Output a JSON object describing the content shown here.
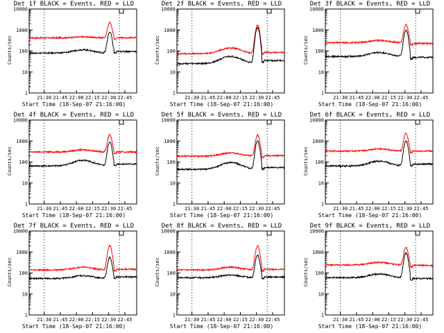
{
  "chart_data": [
    {
      "type": "line",
      "title": "Det 1f BLACK = Events, RED = LLD",
      "xlabel": "Start Time (18-Sep-07 21:16:00)",
      "ylabel": "Counts/sec",
      "x_ticks": [
        "21:30",
        "21:45",
        "22:00",
        "22:15",
        "22:30",
        "22:45"
      ],
      "y_ticks": [
        "1",
        "10",
        "100",
        "1000",
        "10000"
      ],
      "ylim": [
        1,
        10000
      ],
      "yscale": "log",
      "series": [
        {
          "color": "#ff0000",
          "baseline": 420,
          "bump": 470,
          "peak": 2300,
          "end": 430
        },
        {
          "color": "#000000",
          "baseline": 80,
          "bump": 115,
          "peak": 800,
          "end": 95
        }
      ]
    },
    {
      "type": "line",
      "title": "Det 2f BLACK = Events, RED = LLD",
      "xlabel": "Start Time (18-Sep-07 21:16:00)",
      "ylabel": "Counts/sec",
      "x_ticks": [
        "21:30",
        "21:45",
        "22:00",
        "22:15",
        "22:30",
        "22:45"
      ],
      "y_ticks": [
        "1",
        "10",
        "100",
        "1000",
        "10000"
      ],
      "ylim": [
        1,
        10000
      ],
      "yscale": "log",
      "series": [
        {
          "color": "#ff0000",
          "baseline": 75,
          "bump": 140,
          "peak": 1700,
          "end": 85
        },
        {
          "color": "#000000",
          "baseline": 25,
          "bump": 55,
          "peak": 1300,
          "end": 35
        }
      ]
    },
    {
      "type": "line",
      "title": "Det 3f BLACK = Events, RED = LLD",
      "xlabel": "Start Time (18-Sep-07 21:16:00)",
      "ylabel": "Counts/sec",
      "x_ticks": [
        "21:30",
        "21:45",
        "22:00",
        "22:15",
        "22:30",
        "22:45"
      ],
      "y_ticks": [
        "1",
        "10",
        "100",
        "1000",
        "10000"
      ],
      "ylim": [
        1,
        10000
      ],
      "yscale": "log",
      "series": [
        {
          "color": "#ff0000",
          "baseline": 250,
          "bump": 320,
          "peak": 1800,
          "end": 230
        },
        {
          "color": "#000000",
          "baseline": 55,
          "bump": 85,
          "peak": 1000,
          "end": 50
        }
      ]
    },
    {
      "type": "line",
      "title": "Det 4f BLACK = Events, RED = LLD",
      "xlabel": "Start Time (18-Sep-07 21:16:00)",
      "ylabel": "Counts/sec",
      "x_ticks": [
        "21:30",
        "21:45",
        "22:00",
        "22:15",
        "22:30",
        "22:45"
      ],
      "y_ticks": [
        "1",
        "10",
        "100",
        "1000",
        "10000"
      ],
      "ylim": [
        1,
        10000
      ],
      "yscale": "log",
      "series": [
        {
          "color": "#ff0000",
          "baseline": 300,
          "bump": 380,
          "peak": 2000,
          "end": 300
        },
        {
          "color": "#000000",
          "baseline": 65,
          "bump": 120,
          "peak": 900,
          "end": 80
        }
      ]
    },
    {
      "type": "line",
      "title": "Det 5f BLACK = Events, RED = LLD",
      "xlabel": "Start Time (18-Sep-07 21:16:00)",
      "ylabel": "Counts/sec",
      "x_ticks": [
        "21:30",
        "21:45",
        "22:00",
        "22:15",
        "22:30",
        "22:45"
      ],
      "y_ticks": [
        "1",
        "10",
        "100",
        "1000",
        "10000"
      ],
      "ylim": [
        1,
        10000
      ],
      "yscale": "log",
      "series": [
        {
          "color": "#ff0000",
          "baseline": 190,
          "bump": 270,
          "peak": 1900,
          "end": 200
        },
        {
          "color": "#000000",
          "baseline": 45,
          "bump": 95,
          "peak": 1000,
          "end": 55
        }
      ]
    },
    {
      "type": "line",
      "title": "Det 6f BLACK = Events, RED = LLD",
      "xlabel": "Start Time (18-Sep-07 21:16:00)",
      "ylabel": "Counts/sec",
      "x_ticks": [
        "21:30",
        "21:45",
        "22:00",
        "22:15",
        "22:30",
        "22:45"
      ],
      "y_ticks": [
        "1",
        "10",
        "100",
        "1000",
        "10000"
      ],
      "ylim": [
        1,
        10000
      ],
      "yscale": "log",
      "series": [
        {
          "color": "#ff0000",
          "baseline": 330,
          "bump": 420,
          "peak": 2300,
          "end": 330
        },
        {
          "color": "#000000",
          "baseline": 65,
          "bump": 110,
          "peak": 1000,
          "end": 80
        }
      ]
    },
    {
      "type": "line",
      "title": "Det 7f BLACK = Events, RED = LLD",
      "xlabel": "Start Time (18-Sep-07 21:16:00)",
      "ylabel": "Counts/sec",
      "x_ticks": [
        "21:30",
        "21:45",
        "22:00",
        "22:15",
        "22:30",
        "22:45"
      ],
      "y_ticks": [
        "1",
        "10",
        "100",
        "1000",
        "10000"
      ],
      "ylim": [
        1,
        10000
      ],
      "yscale": "log",
      "series": [
        {
          "color": "#ff0000",
          "baseline": 140,
          "bump": 190,
          "peak": 2000,
          "end": 150
        },
        {
          "color": "#000000",
          "baseline": 55,
          "bump": 75,
          "peak": 550,
          "end": 65
        }
      ]
    },
    {
      "type": "line",
      "title": "Det 8f BLACK = Events, RED = LLD",
      "xlabel": "Start Time (18-Sep-07 21:16:00)",
      "ylabel": "Counts/sec",
      "x_ticks": [
        "21:30",
        "21:45",
        "22:00",
        "22:15",
        "22:30",
        "22:45"
      ],
      "y_ticks": [
        "1",
        "10",
        "100",
        "1000",
        "10000"
      ],
      "ylim": [
        1,
        10000
      ],
      "yscale": "log",
      "series": [
        {
          "color": "#ff0000",
          "baseline": 140,
          "bump": 190,
          "peak": 2000,
          "end": 150
        },
        {
          "color": "#000000",
          "baseline": 60,
          "bump": 80,
          "peak": 700,
          "end": 65
        }
      ]
    },
    {
      "type": "line",
      "title": "Det 9f BLACK = Events, RED = LLD",
      "xlabel": "Start Time (18-Sep-07 21:16:00)",
      "ylabel": "Counts/sec",
      "x_ticks": [
        "21:30",
        "21:45",
        "22:00",
        "22:15",
        "22:30",
        "22:45"
      ],
      "y_ticks": [
        "1",
        "10",
        "100",
        "1000",
        "10000"
      ],
      "ylim": [
        1,
        10000
      ],
      "yscale": "log",
      "series": [
        {
          "color": "#ff0000",
          "baseline": 240,
          "bump": 320,
          "peak": 1700,
          "end": 230
        },
        {
          "color": "#000000",
          "baseline": 60,
          "bump": 90,
          "peak": 900,
          "end": 55
        }
      ]
    }
  ]
}
